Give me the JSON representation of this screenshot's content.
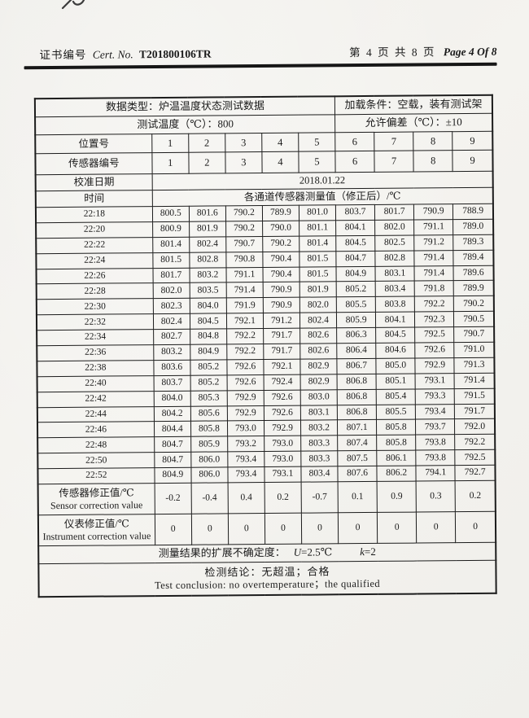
{
  "colors": {
    "paper": "#f2f1ed",
    "ink": "#1a1a1a"
  },
  "header": {
    "cert_label_zh": "证书编号",
    "cert_label_en": "Cert. No.",
    "cert_number": "T201800106TR",
    "page_zh": "第 4 页 共 8 页",
    "page_en": "Page 4 Of 8"
  },
  "table": {
    "data_type": "数据类型：炉温温度状态测试数据",
    "load_condition": "加载条件：空载，装有测试架",
    "test_temperature": "测试温度（℃）：800",
    "allowed_deviation": "允许偏差（℃）：±10",
    "position_label": "位置号",
    "positions": [
      "1",
      "2",
      "3",
      "4",
      "5",
      "6",
      "7",
      "8",
      "9"
    ],
    "sensor_number_label": "传感器编号",
    "sensor_numbers": [
      "1",
      "2",
      "3",
      "4",
      "5",
      "6",
      "7",
      "8",
      "9"
    ],
    "calibration_date_label": "校准日期",
    "calibration_date": "2018.01.22",
    "time_label": "时间",
    "channel_header": "各通道传感器测量值（修正后）/℃",
    "readings": [
      {
        "time": "22:18",
        "values": [
          "800.5",
          "801.6",
          "790.2",
          "789.9",
          "801.0",
          "803.7",
          "801.7",
          "790.9",
          "788.9"
        ]
      },
      {
        "time": "22:20",
        "values": [
          "800.9",
          "801.9",
          "790.2",
          "790.0",
          "801.1",
          "804.1",
          "802.0",
          "791.1",
          "789.0"
        ]
      },
      {
        "time": "22:22",
        "values": [
          "801.4",
          "802.4",
          "790.7",
          "790.2",
          "801.4",
          "804.5",
          "802.5",
          "791.2",
          "789.3"
        ]
      },
      {
        "time": "22:24",
        "values": [
          "801.5",
          "802.8",
          "790.8",
          "790.4",
          "801.5",
          "804.7",
          "802.8",
          "791.4",
          "789.4"
        ]
      },
      {
        "time": "22:26",
        "values": [
          "801.7",
          "803.2",
          "791.1",
          "790.4",
          "801.5",
          "804.9",
          "803.1",
          "791.4",
          "789.6"
        ]
      },
      {
        "time": "22:28",
        "values": [
          "802.0",
          "803.5",
          "791.4",
          "790.9",
          "801.9",
          "805.2",
          "803.4",
          "791.8",
          "789.9"
        ]
      },
      {
        "time": "22:30",
        "values": [
          "802.3",
          "804.0",
          "791.9",
          "790.9",
          "802.0",
          "805.5",
          "803.8",
          "792.2",
          "790.2"
        ]
      },
      {
        "time": "22:32",
        "values": [
          "802.4",
          "804.5",
          "792.1",
          "791.2",
          "802.4",
          "805.9",
          "804.1",
          "792.3",
          "790.5"
        ]
      },
      {
        "time": "22:34",
        "values": [
          "802.7",
          "804.8",
          "792.2",
          "791.7",
          "802.6",
          "806.3",
          "804.5",
          "792.5",
          "790.7"
        ]
      },
      {
        "time": "22:36",
        "values": [
          "803.2",
          "804.9",
          "792.2",
          "791.7",
          "802.6",
          "806.4",
          "804.6",
          "792.6",
          "791.0"
        ]
      },
      {
        "time": "22:38",
        "values": [
          "803.6",
          "805.2",
          "792.6",
          "792.1",
          "802.9",
          "806.7",
          "805.0",
          "792.9",
          "791.3"
        ]
      },
      {
        "time": "22:40",
        "values": [
          "803.7",
          "805.2",
          "792.6",
          "792.4",
          "802.9",
          "806.8",
          "805.1",
          "793.1",
          "791.4"
        ]
      },
      {
        "time": "22:42",
        "values": [
          "804.0",
          "805.3",
          "792.9",
          "792.6",
          "803.0",
          "806.8",
          "805.4",
          "793.3",
          "791.5"
        ]
      },
      {
        "time": "22:44",
        "values": [
          "804.2",
          "805.6",
          "792.9",
          "792.6",
          "803.1",
          "806.8",
          "805.5",
          "793.4",
          "791.7"
        ]
      },
      {
        "time": "22:46",
        "values": [
          "804.4",
          "805.8",
          "793.0",
          "792.9",
          "803.2",
          "807.1",
          "805.8",
          "793.7",
          "792.0"
        ]
      },
      {
        "time": "22:48",
        "values": [
          "804.7",
          "805.9",
          "793.2",
          "793.0",
          "803.3",
          "807.4",
          "805.8",
          "793.8",
          "792.2"
        ]
      },
      {
        "time": "22:50",
        "values": [
          "804.7",
          "806.0",
          "793.4",
          "793.0",
          "803.3",
          "807.5",
          "806.1",
          "793.8",
          "792.5"
        ]
      },
      {
        "time": "22:52",
        "values": [
          "804.9",
          "806.0",
          "793.4",
          "793.1",
          "803.4",
          "807.6",
          "806.2",
          "794.1",
          "792.7"
        ]
      }
    ],
    "sensor_correction": {
      "label_zh": "传感器修正值/℃",
      "label_en": "Sensor correction value",
      "values": [
        "-0.2",
        "-0.4",
        "0.4",
        "0.2",
        "-0.7",
        "0.1",
        "0.9",
        "0.3",
        "0.2"
      ]
    },
    "instrument_correction": {
      "label_zh": "仪表修正值/℃",
      "label_en": "Instrument correction value",
      "values": [
        "0",
        "0",
        "0",
        "0",
        "0",
        "0",
        "0",
        "0",
        "0"
      ]
    },
    "uncertainty": {
      "prefix": "测量结果的扩展不确定度：",
      "u_symbol": "U",
      "u_rest": "=2.5℃",
      "k_symbol": "k",
      "k_rest": "=2"
    },
    "conclusion_zh": "检测结论：无超温；合格",
    "conclusion_en": "Test conclusion: no overtemperature；the qualified"
  }
}
